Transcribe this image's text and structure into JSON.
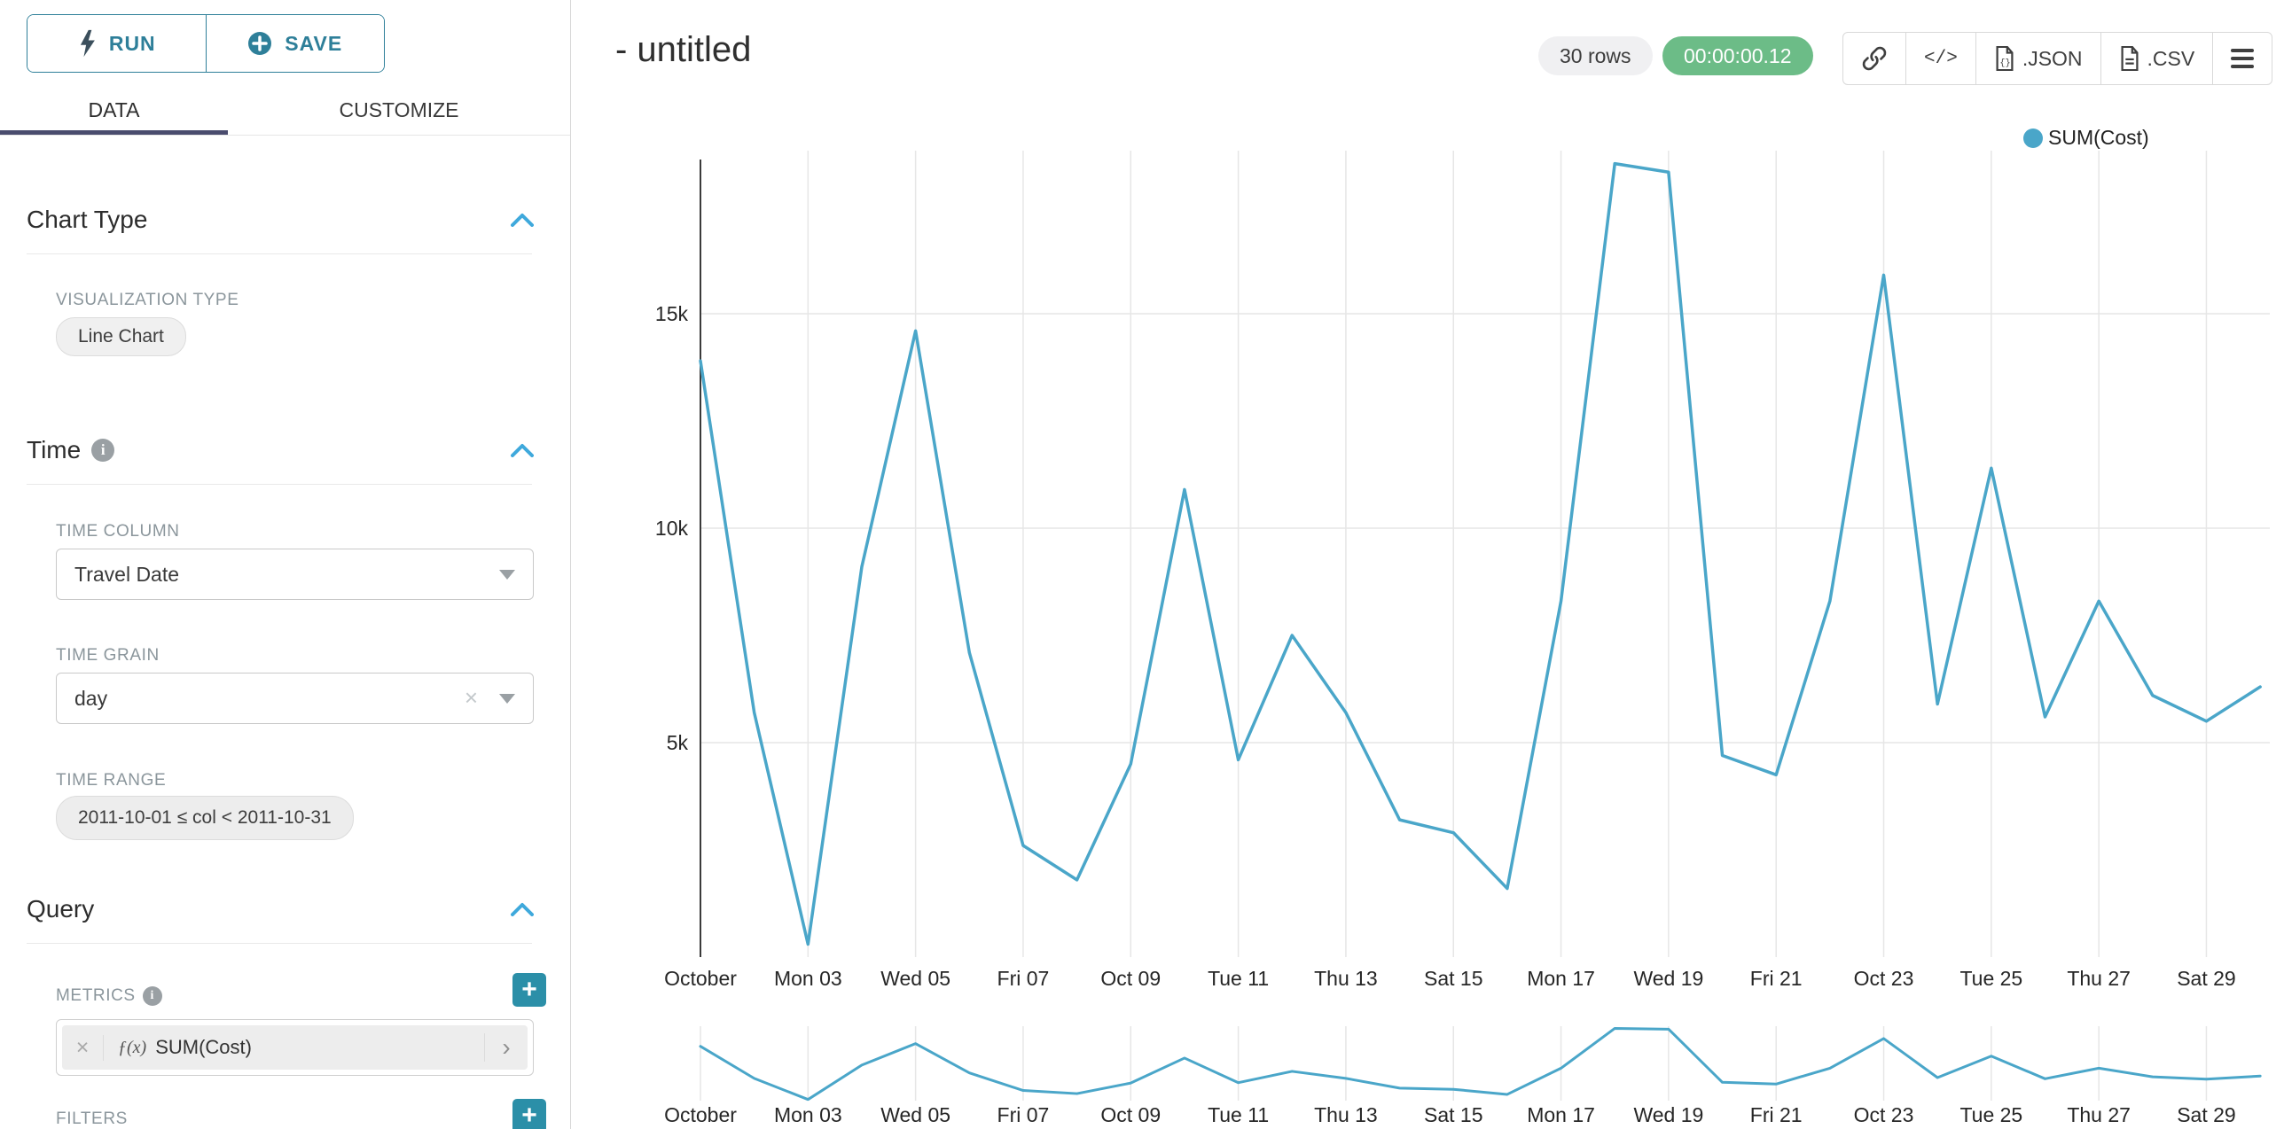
{
  "sidebar": {
    "run_label": "RUN",
    "save_label": "SAVE",
    "tabs": {
      "data": "DATA",
      "customize": "CUSTOMIZE"
    },
    "chart_type_section": {
      "title": "Chart Type",
      "viz_type_label": "VISUALIZATION TYPE",
      "viz_type_value": "Line Chart"
    },
    "time_section": {
      "title": "Time",
      "time_column_label": "TIME COLUMN",
      "time_column_value": "Travel Date",
      "time_grain_label": "TIME GRAIN",
      "time_grain_value": "day",
      "time_range_label": "TIME RANGE",
      "time_range_value": "2011-10-01 ≤ col < 2011-10-31"
    },
    "query_section": {
      "title": "Query",
      "metrics_label": "METRICS",
      "metric_fx": "ƒ(x)",
      "metric_value": "SUM(Cost)",
      "filters_label": "FILTERS"
    }
  },
  "header": {
    "title": "- untitled",
    "rows_badge": "30 rows",
    "timer_badge": "00:00:00.12",
    "export_json_label": ".JSON",
    "export_csv_label": ".CSV"
  },
  "legend": {
    "label": "SUM(Cost)",
    "color": "#4aa6c9"
  },
  "colors": {
    "accent_teal": "#2e7f99",
    "plus_button_teal": "#2b8fa8",
    "tab_underline_navy": "#4a4c6e",
    "timer_green": "#6cbc87",
    "line_blue": "#4aa6c9",
    "chevron_blue": "#3fa9dc",
    "grid_gray": "#e6e6e6"
  },
  "chart_data": {
    "type": "line",
    "title": "",
    "xlabel": "",
    "ylabel": "",
    "x_description": "Daily values, October 2011 (Oct 1 - Oct 30)",
    "series": [
      {
        "name": "SUM(Cost)",
        "values": [
          13900,
          5700,
          300,
          9100,
          14600,
          7100,
          2600,
          1800,
          4500,
          10900,
          4600,
          7500,
          5700,
          3200,
          2900,
          1600,
          8300,
          18500,
          18300,
          4700,
          4250,
          8300,
          15900,
          5900,
          11400,
          5600,
          8300,
          6100,
          5500,
          6300
        ]
      }
    ],
    "x_tick_days": [
      1,
      3,
      5,
      7,
      9,
      11,
      13,
      15,
      17,
      19,
      21,
      23,
      25,
      27,
      29
    ],
    "x_tick_labels": [
      "October",
      "Mon 03",
      "Wed 05",
      "Fri 07",
      "Oct 09",
      "Tue 11",
      "Thu 13",
      "Sat 15",
      "Mon 17",
      "Wed 19",
      "Fri 21",
      "Oct 23",
      "Tue 25",
      "Thu 27",
      "Sat 29"
    ],
    "y_ticks": [
      {
        "value": 5000,
        "label": "5k"
      },
      {
        "value": 10000,
        "label": "10k"
      },
      {
        "value": 15000,
        "label": "15k"
      }
    ],
    "ylim": [
      0,
      18600
    ],
    "grid": true,
    "legend_position": "top-right",
    "has_context_brush_chart": true
  }
}
